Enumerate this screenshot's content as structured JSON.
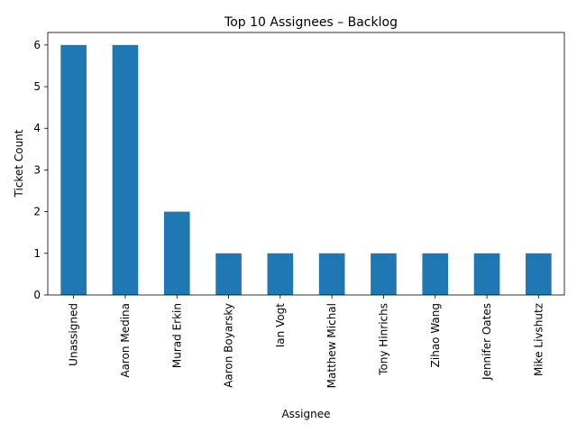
{
  "chart_data": {
    "type": "bar",
    "title": "Top 10 Assignees – Backlog",
    "xlabel": "Assignee",
    "ylabel": "Ticket Count",
    "categories": [
      "Unassigned",
      "Aaron Medina",
      "Murad Erkin",
      "Aaron Boyarsky",
      "Ian Vogt",
      "Matthew Michal",
      "Tony Hinrichs",
      "Zihao Wang",
      "Jennifer Oates",
      "Mike Livshutz"
    ],
    "values": [
      6,
      6,
      2,
      1,
      1,
      1,
      1,
      1,
      1,
      1
    ],
    "ylim": [
      0,
      6.3
    ],
    "yticks": [
      0,
      1,
      2,
      3,
      4,
      5,
      6
    ],
    "grid": false,
    "legend": "none",
    "bar_color": "#1f77b4"
  }
}
